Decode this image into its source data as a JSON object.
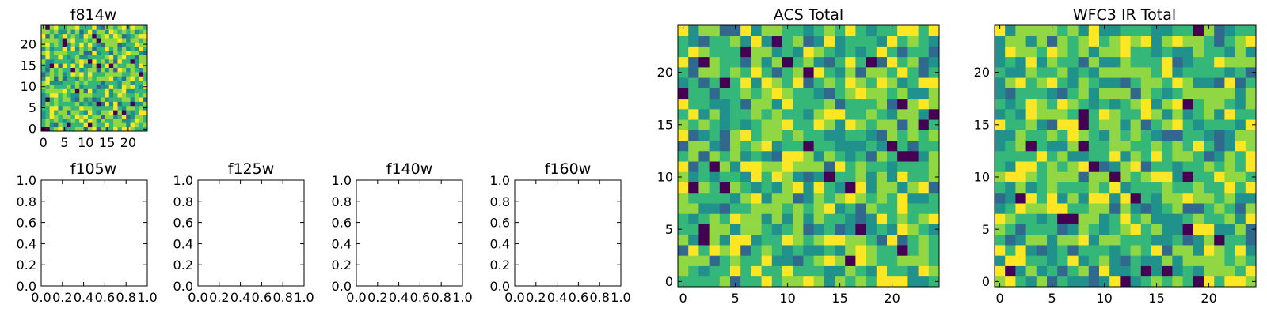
{
  "chart_data": [
    {
      "id": "f814w",
      "type": "heatmap",
      "title": "f814w",
      "grid_size": [
        25,
        25
      ],
      "xlim": [
        -0.5,
        24.5
      ],
      "ylim": [
        -0.5,
        24.5
      ],
      "xticks": [
        "0",
        "5",
        "10",
        "15",
        "20"
      ],
      "yticks": [
        "0",
        "5",
        "10",
        "15",
        "20"
      ],
      "colormap": [
        "#440154",
        "#31688e",
        "#21918c",
        "#35b779",
        "#90d743",
        "#fde725"
      ],
      "note": "random noise pattern, values 0..1"
    },
    {
      "id": "f105w",
      "type": "heatmap",
      "title": "f105w",
      "empty": true,
      "xlim": [
        0,
        1
      ],
      "ylim": [
        0,
        1
      ],
      "xticks": [
        "0.0",
        "0.2",
        "0.4",
        "0.6",
        "0.8",
        "1.0"
      ],
      "yticks": [
        "0.0",
        "0.2",
        "0.4",
        "0.6",
        "0.8",
        "1.0"
      ]
    },
    {
      "id": "f125w",
      "type": "heatmap",
      "title": "f125w",
      "empty": true,
      "xlim": [
        0,
        1
      ],
      "ylim": [
        0,
        1
      ],
      "xticks": [
        "0.0",
        "0.2",
        "0.4",
        "0.6",
        "0.8",
        "1.0"
      ],
      "yticks": [
        "0.0",
        "0.2",
        "0.4",
        "0.6",
        "0.8",
        "1.0"
      ]
    },
    {
      "id": "f140w",
      "type": "heatmap",
      "title": "f140w",
      "empty": true,
      "xlim": [
        0,
        1
      ],
      "ylim": [
        0,
        1
      ],
      "xticks": [
        "0.0",
        "0.2",
        "0.4",
        "0.6",
        "0.8",
        "1.0"
      ],
      "yticks": [
        "0.0",
        "0.2",
        "0.4",
        "0.6",
        "0.8",
        "1.0"
      ]
    },
    {
      "id": "f160w",
      "type": "heatmap",
      "title": "f160w",
      "empty": true,
      "xlim": [
        0,
        1
      ],
      "ylim": [
        0,
        1
      ],
      "xticks": [
        "0.0",
        "0.2",
        "0.4",
        "0.6",
        "0.8",
        "1.0"
      ],
      "yticks": [
        "0.0",
        "0.2",
        "0.4",
        "0.6",
        "0.8",
        "1.0"
      ]
    },
    {
      "id": "acs-total",
      "type": "heatmap",
      "title": "ACS Total",
      "grid_size": [
        25,
        25
      ],
      "xlim": [
        -0.5,
        24.5
      ],
      "ylim": [
        -0.5,
        24.5
      ],
      "xticks": [
        "0",
        "5",
        "10",
        "15",
        "20"
      ],
      "yticks": [
        "0",
        "5",
        "10",
        "15",
        "20"
      ],
      "colormap": [
        "#440154",
        "#31688e",
        "#21918c",
        "#35b779",
        "#90d743",
        "#fde725"
      ],
      "note": "random noise pattern, values 0..1"
    },
    {
      "id": "wfc3-ir-total",
      "type": "heatmap",
      "title": "WFC3 IR Total",
      "grid_size": [
        25,
        25
      ],
      "xlim": [
        -0.5,
        24.5
      ],
      "ylim": [
        -0.5,
        24.5
      ],
      "xticks": [
        "0",
        "5",
        "10",
        "15",
        "20"
      ],
      "yticks": [
        "0",
        "5",
        "10",
        "15",
        "20"
      ],
      "colormap": [
        "#440154",
        "#31688e",
        "#21918c",
        "#35b779",
        "#90d743",
        "#fde725"
      ],
      "note": "random noise pattern, values 0..1"
    }
  ]
}
